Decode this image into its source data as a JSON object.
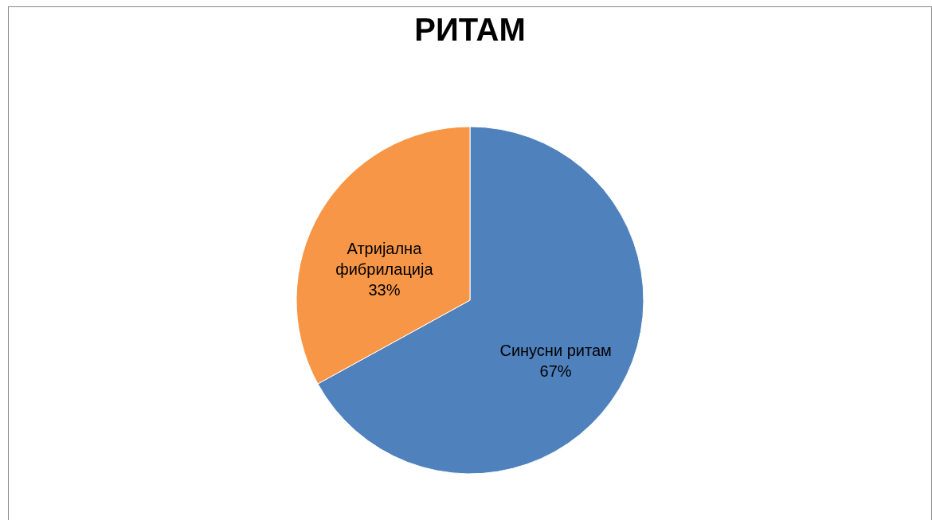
{
  "chart_data": {
    "type": "pie",
    "title": "РИТАМ",
    "categories": [
      "Синусни ритам",
      "Атријална фибрилација"
    ],
    "values": [
      67,
      33
    ],
    "colors": [
      "#4f81bd",
      "#f79646"
    ],
    "value_labels": [
      "67%",
      "33%"
    ]
  }
}
